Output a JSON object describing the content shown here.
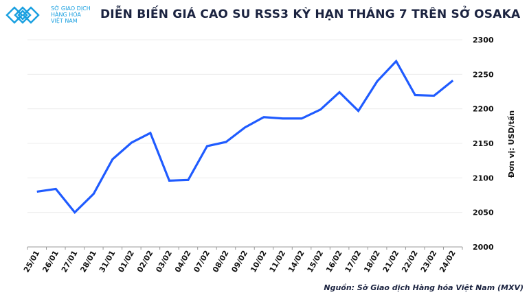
{
  "logo": {
    "line1": "SỞ GIAO DỊCH",
    "line2": "HÀNG HÓA",
    "line3": "VIỆT NAM"
  },
  "source": "Nguồn: Sở Giao dịch Hàng hóa Việt Nam (MXV)",
  "chart_data": {
    "type": "line",
    "title": "DIỄN BIẾN GIÁ CAO SU RSS3 KỲ HẠN THÁNG 7 TRÊN SỞ OSAKA",
    "ylabel": "Đơn vị: USD/tấn",
    "xlabel": "",
    "ylim": [
      2000,
      2300
    ],
    "yticks": [
      2000,
      2050,
      2100,
      2150,
      2200,
      2250,
      2300
    ],
    "grid": true,
    "color": "#1f5bff",
    "categories": [
      "25/01",
      "26/01",
      "27/01",
      "28/01",
      "31/01",
      "01/02",
      "02/02",
      "03/02",
      "04/02",
      "07/02",
      "08/02",
      "09/02",
      "10/02",
      "11/02",
      "14/02",
      "15/02",
      "16/02",
      "17/02",
      "18/02",
      "21/02",
      "22/02",
      "23/02",
      "24/02"
    ],
    "values": [
      2080,
      2084,
      2050,
      2077,
      2127,
      2151,
      2165,
      2096,
      2097,
      2146,
      2152,
      2173,
      2188,
      2186,
      2186,
      2199,
      2224,
      2197,
      2240,
      2269,
      2220,
      2219,
      2241
    ]
  }
}
